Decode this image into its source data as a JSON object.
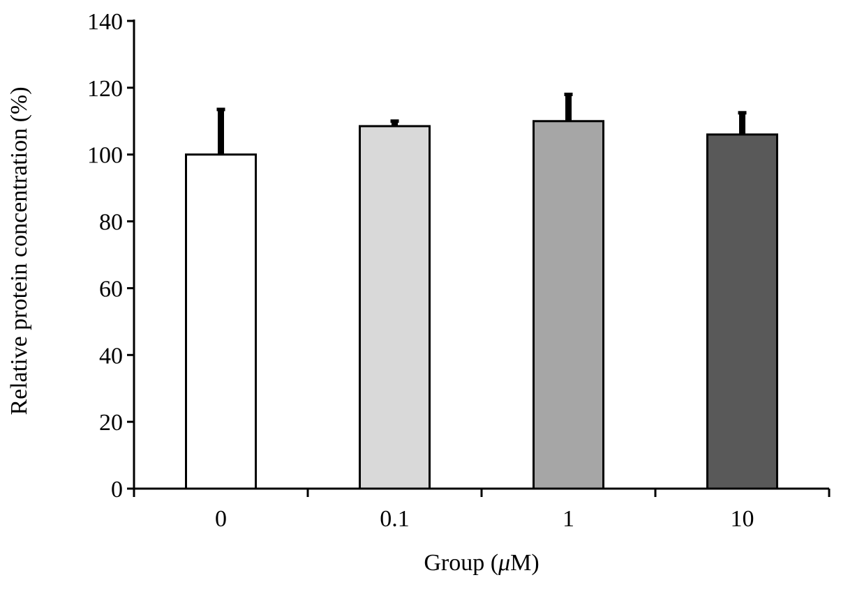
{
  "chart_data": {
    "type": "bar",
    "xlabel_pre": "Group (",
    "xlabel_mu": "μ",
    "xlabel_post": "M)",
    "ylabel": "Relative protein concentration (%)",
    "categories": [
      "0",
      "0.1",
      "1",
      "10"
    ],
    "series": [
      {
        "values": [
          100,
          108.5,
          110,
          106
        ],
        "errors": [
          13.5,
          1.5,
          8,
          6.5
        ]
      }
    ],
    "bar_colors": [
      "#ffffff",
      "#d9d9d9",
      "#a6a6a6",
      "#595959"
    ],
    "ylim": [
      0,
      140
    ],
    "yticks": [
      0,
      20,
      40,
      60,
      80,
      100,
      120,
      140
    ],
    "grid": false,
    "legend": "none"
  }
}
